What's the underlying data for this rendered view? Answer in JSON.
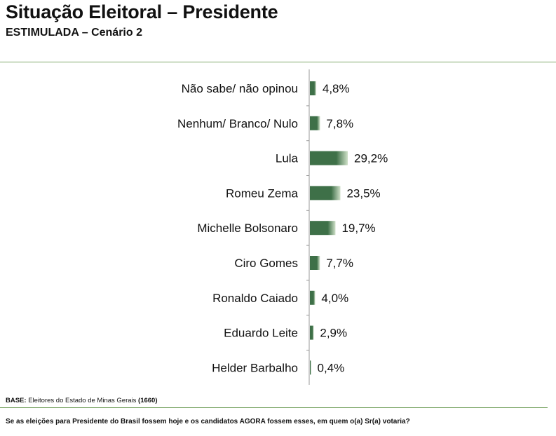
{
  "header": {
    "title": "Situação Eleitoral – Presidente",
    "subtitle": "ESTIMULADA – Cenário 2"
  },
  "footer": {
    "base_label": "BASE:",
    "base_text": "Eleitores do Estado de Minas Gerais",
    "base_count": "(1660)",
    "question": "Se as eleições para Presidente do Brasil fossem hoje e os candidatos AGORA fossem esses, em quem o(a) Sr(a) votaria?"
  },
  "colors": {
    "bar": "#3e7048",
    "bar_highlight": "#ffffff",
    "rule": "#7fa86a",
    "axis": "#9a9a9a"
  },
  "chart_data": {
    "type": "bar",
    "orientation": "horizontal",
    "categories": [
      "Não sabe/ não opinou",
      "Nenhum/ Branco/ Nulo",
      "Lula",
      "Romeu Zema",
      "Michelle Bolsonaro",
      "Ciro Gomes",
      "Ronaldo Caiado",
      "Eduardo Leite",
      "Helder Barbalho"
    ],
    "values": [
      4.8,
      7.8,
      29.2,
      23.5,
      19.7,
      7.7,
      4.0,
      2.9,
      0.4
    ],
    "value_labels": [
      "4,8%",
      "7,8%",
      "29,2%",
      "23,5%",
      "19,7%",
      "7,7%",
      "4,0%",
      "2,9%",
      "0,4%"
    ],
    "xlim": [
      0,
      100
    ],
    "grid": false,
    "legend": "none"
  }
}
